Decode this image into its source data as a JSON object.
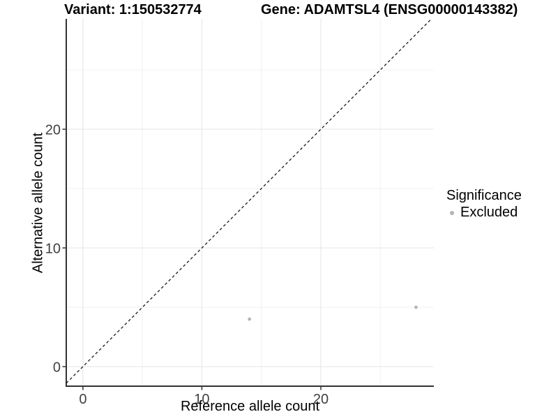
{
  "header": {
    "variant_title": "Variant: 1:150532774",
    "gene_title": "Gene: ADAMTSL4 (ENSG00000143382)"
  },
  "legend": {
    "title": "Significance",
    "items": [
      {
        "label": "Excluded",
        "marker_color": "#b4b4b4"
      }
    ]
  },
  "chart_data": {
    "type": "scatter",
    "xlabel": "Reference allele count",
    "ylabel": "Alternative allele count",
    "xlim": [
      -1.4,
      29.5
    ],
    "ylim": [
      -1.65,
      29.3
    ],
    "x_ticks": [
      0,
      10,
      20
    ],
    "y_ticks": [
      0,
      10,
      20
    ],
    "x_minor_ticks": [
      5,
      15,
      25
    ],
    "y_minor_ticks": [
      5,
      15,
      25
    ],
    "grid": "major+minor",
    "legend_position": "right",
    "reference_line": {
      "type": "identity",
      "slope": 1,
      "intercept": 0,
      "style": "dashed"
    },
    "series": [
      {
        "name": "Excluded",
        "color": "#b4b4b4",
        "points": [
          {
            "x": 14,
            "y": 4
          },
          {
            "x": 28,
            "y": 5
          }
        ]
      }
    ]
  },
  "style": {
    "axis_line_color": "#333333",
    "tick_color": "#333333",
    "tick_label_color": "#404040",
    "major_grid_color": "#e4e4e4",
    "minor_grid_color": "#f2f2f2",
    "reference_line_color": "#1a1a1a",
    "point_color": "#b4b4b4",
    "background": "#ffffff"
  }
}
